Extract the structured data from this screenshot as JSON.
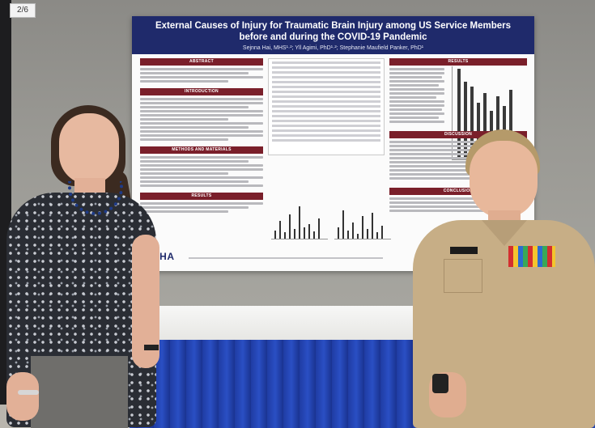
{
  "photo": {
    "corner_label": "2/6",
    "poster": {
      "title": "External Causes of Injury for Traumatic Brain Injury among US Service Members before and during the COVID-19 Pandemic",
      "authors": "Sejnna Hai, MHS¹·²; Yll Agimi, PhD¹·²; Stephanie Maufield Panker, PhD¹",
      "sections": {
        "abstract": "ABSTRACT",
        "introduction": "INTRODUCTION",
        "methods": "METHODS AND MATERIALS",
        "results_left": "RESULTS",
        "results_right": "RESULTS",
        "discussion": "DISCUSSION",
        "conclusion": "CONCLUSION"
      },
      "logo_text": "DHA"
    }
  }
}
